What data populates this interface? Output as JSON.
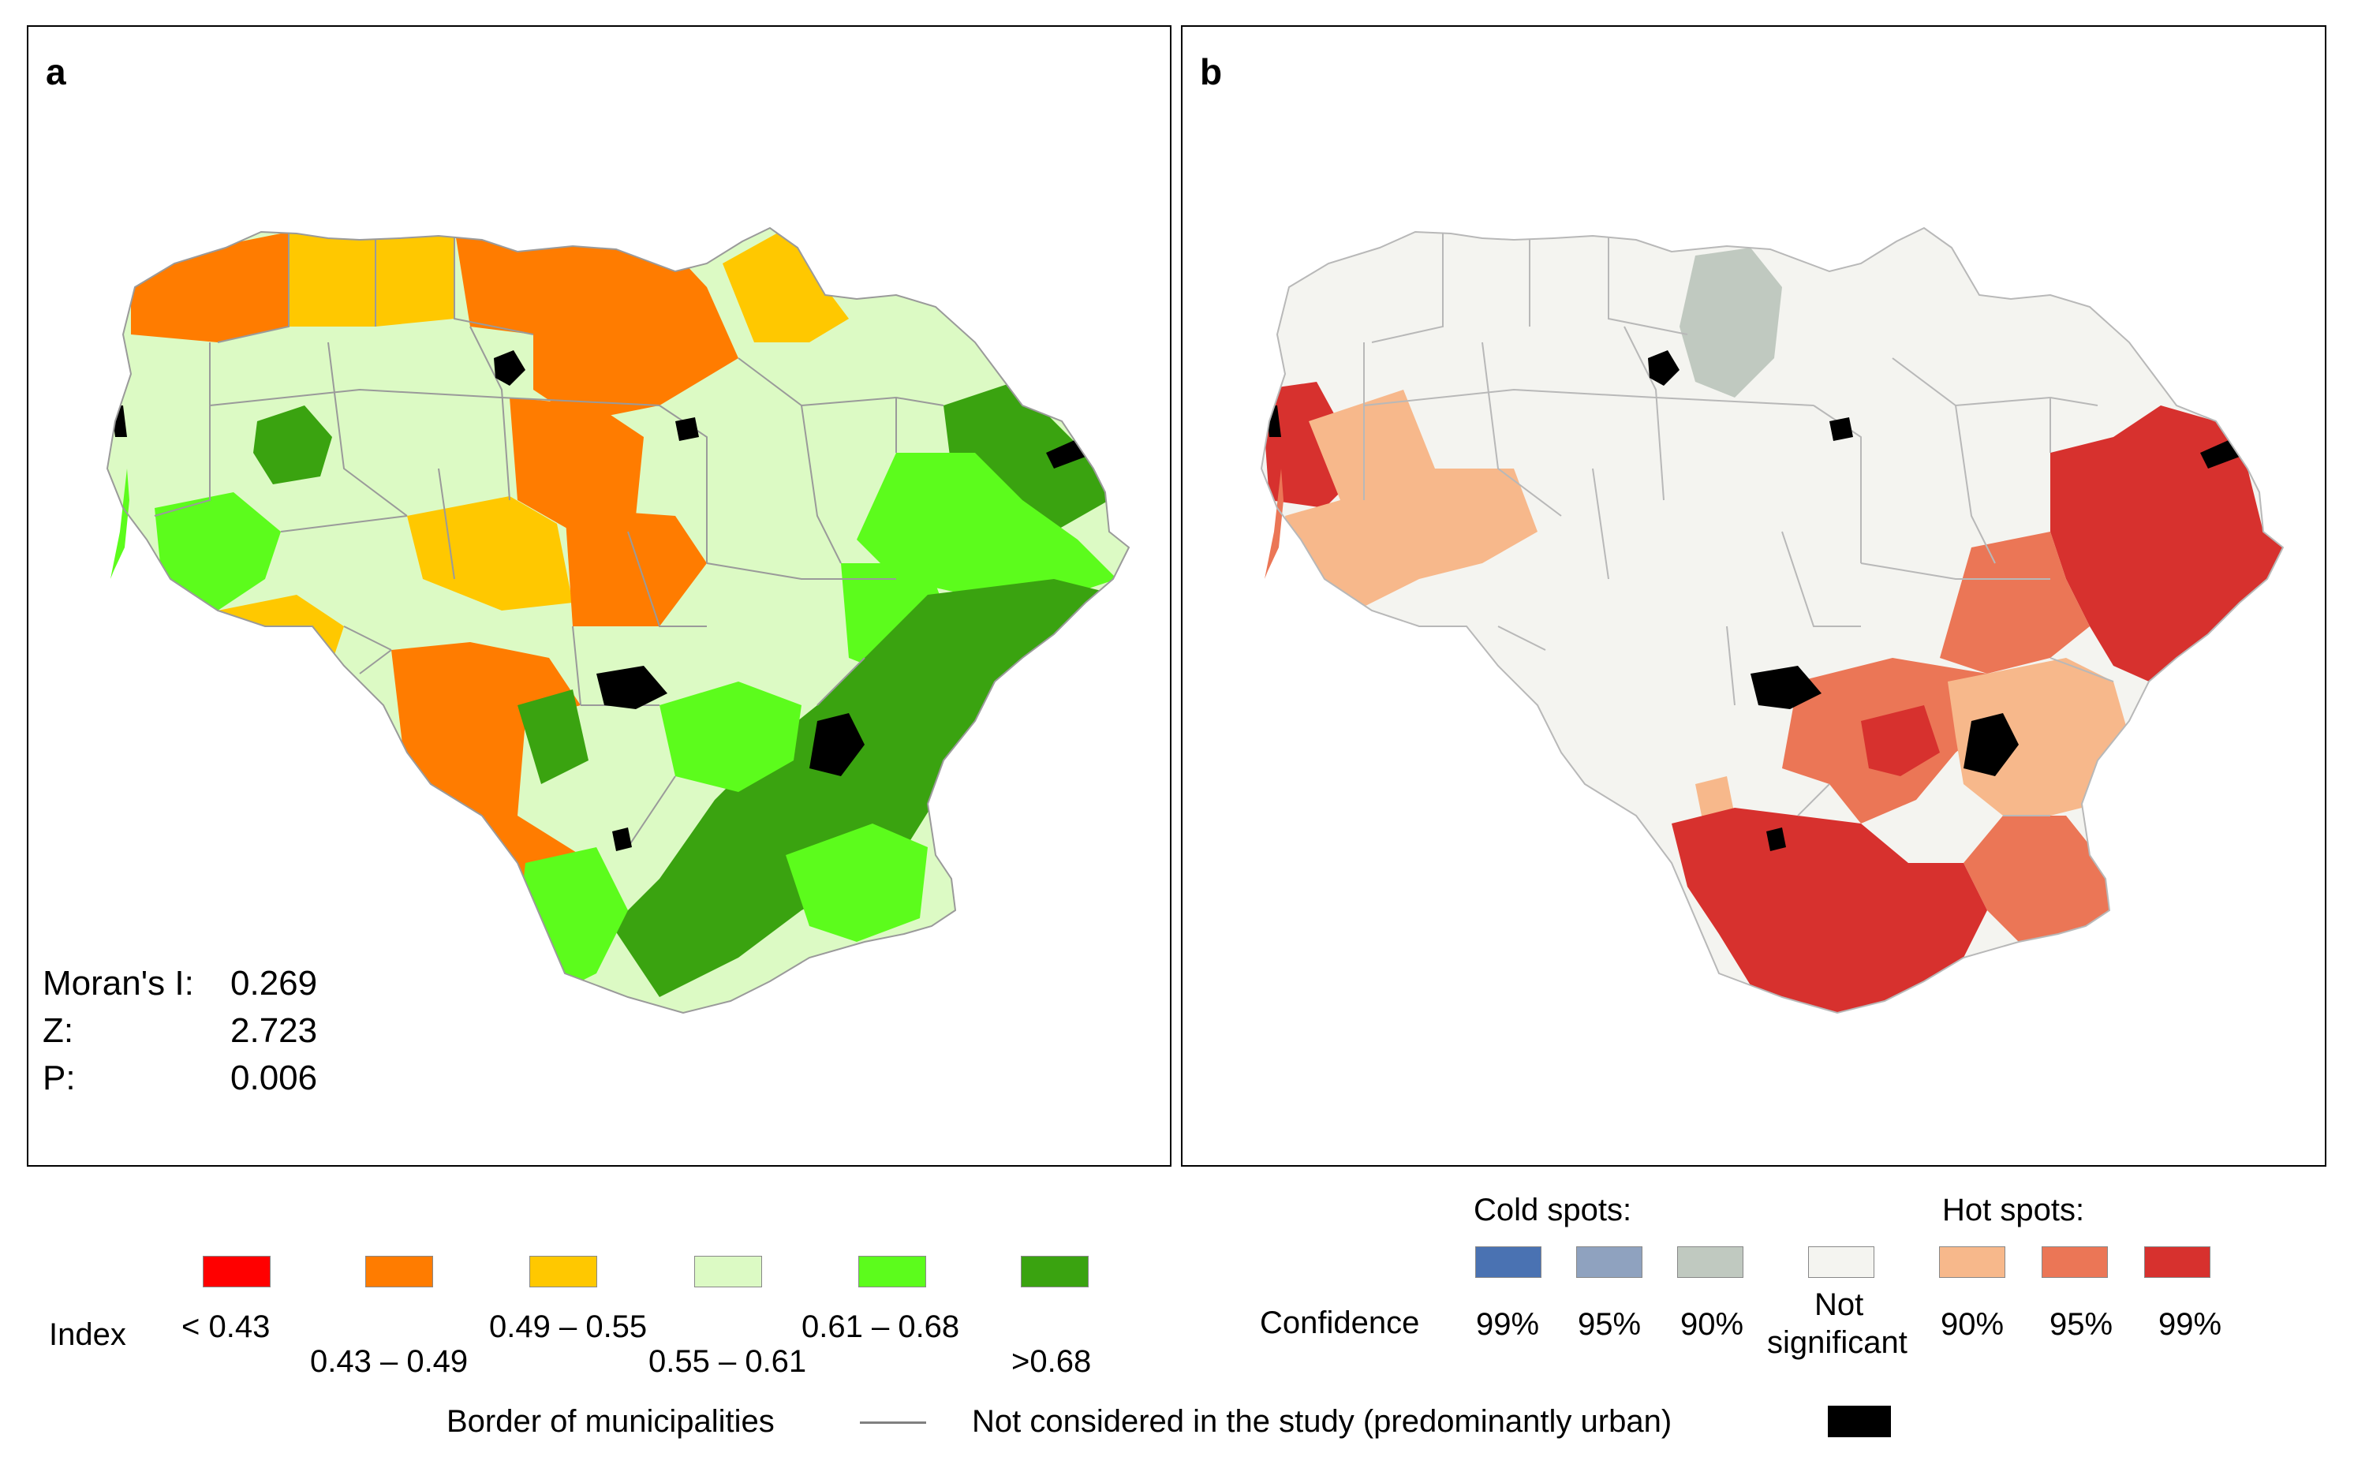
{
  "panel_a": {
    "letter": "a",
    "morans_label": "Moran's I:",
    "morans_value": "0.269",
    "z_label": "Z:",
    "z_value": "2.723",
    "p_label": "P:",
    "p_value": "0.006"
  },
  "panel_b": {
    "letter": "b"
  },
  "index_legend": {
    "title": "Index",
    "classes": [
      {
        "label": "< 0.43",
        "color": "#ff0000"
      },
      {
        "label": "0.43 – 0.49",
        "color": "#ff7c00"
      },
      {
        "label": "0.49 – 0.55",
        "color": "#ffc800"
      },
      {
        "label": "0.55 – 0.61",
        "color": "#dcfac4"
      },
      {
        "label": "0.61 – 0.68",
        "color": "#5cfc1c"
      },
      {
        "label": ">0.68",
        "color": "#3aa310"
      }
    ]
  },
  "hotspot_legend": {
    "cold_title": "Cold spots:",
    "hot_title": "Hot spots:",
    "confidence_label": "Confidence",
    "classes": [
      {
        "label": "99%",
        "color": "#4a72b2"
      },
      {
        "label": "95%",
        "color": "#8fa2bf"
      },
      {
        "label": "90%",
        "color": "#c0c9c0"
      },
      {
        "label": "Not",
        "label2": "significant",
        "color": "#f4f4f0"
      },
      {
        "label": "90%",
        "color": "#f7b88b"
      },
      {
        "label": "95%",
        "color": "#eb7656"
      },
      {
        "label": "99%",
        "color": "#d7312e"
      }
    ]
  },
  "bottom_legend": {
    "border_label": "Border of municipalities",
    "urban_label": "Not considered in the study (predominantly urban)",
    "border_color": "#808080",
    "urban_color": "#000000"
  }
}
